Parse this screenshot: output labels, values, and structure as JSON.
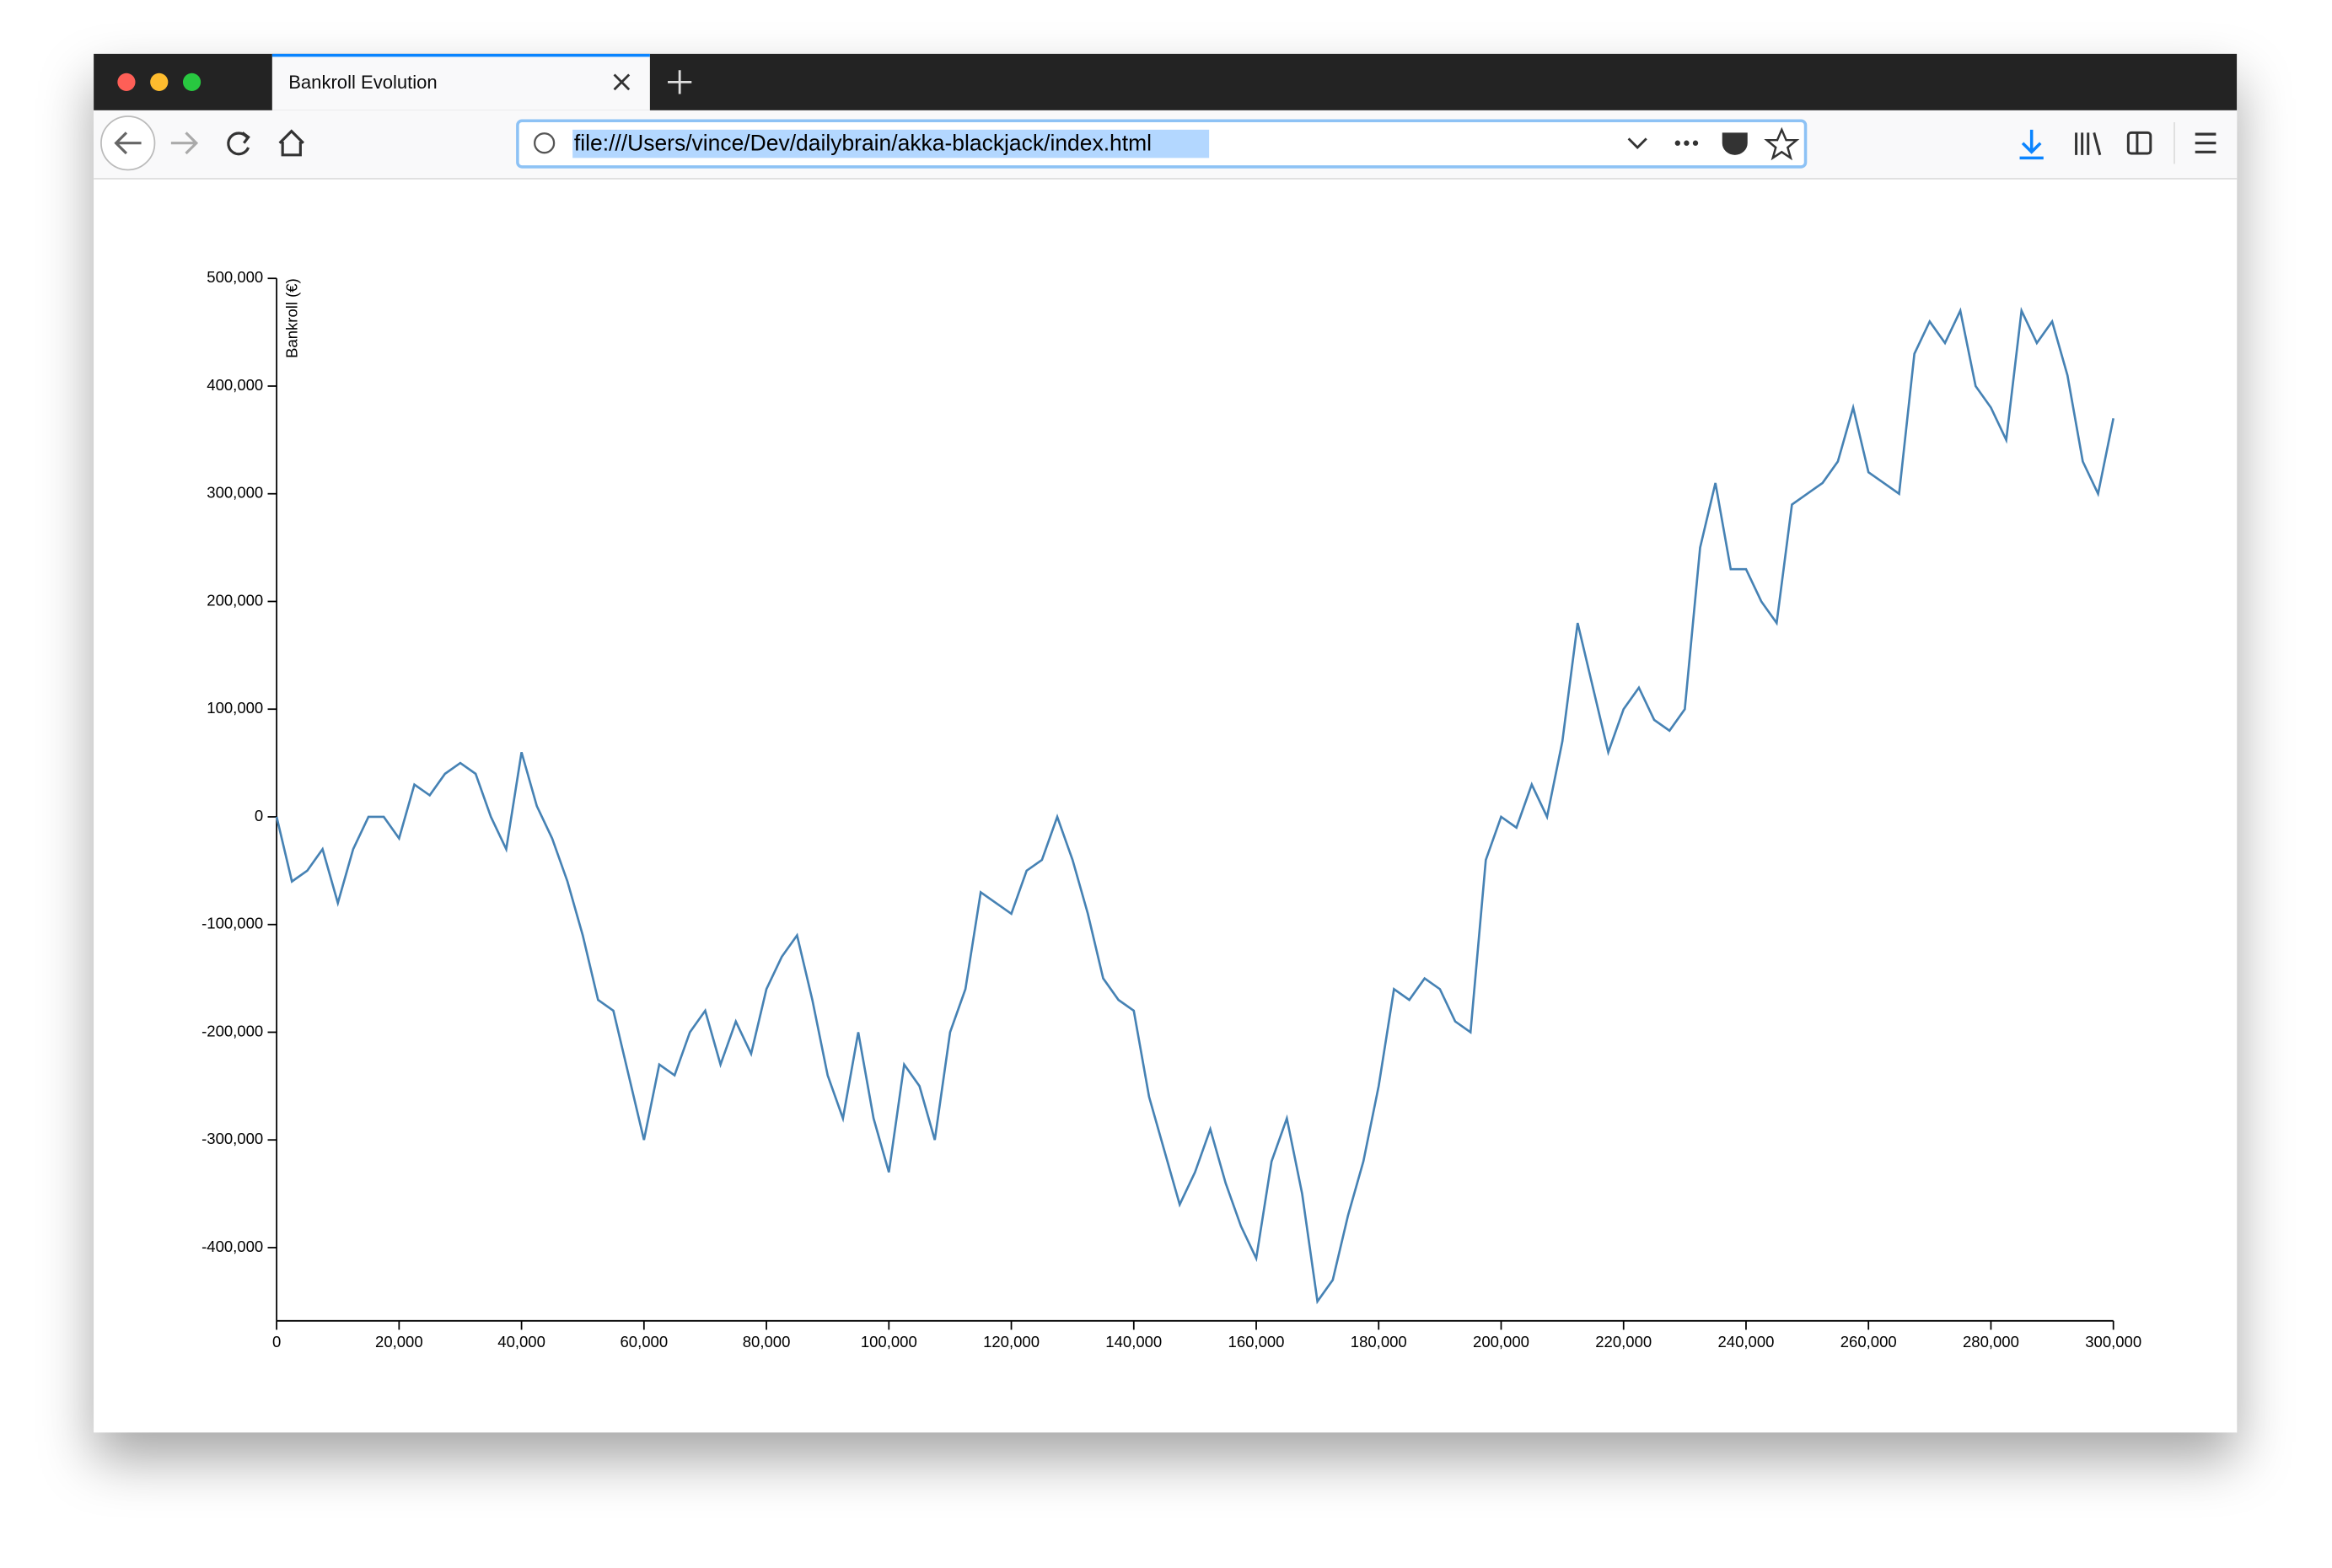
{
  "browser": {
    "tab_title": "Bankroll Evolution",
    "url": "file:///Users/vince/Dev/dailybrain/akka-blackjack/index.html"
  },
  "chart_data": {
    "type": "line",
    "y_label": "Bankroll (€)",
    "color": "#4682b4",
    "x": [
      0,
      2500,
      5000,
      7500,
      10000,
      12500,
      15000,
      17500,
      20000,
      22500,
      25000,
      27500,
      30000,
      32500,
      35000,
      37500,
      40000,
      42500,
      45000,
      47500,
      50000,
      52500,
      55000,
      57500,
      60000,
      62500,
      65000,
      67500,
      70000,
      72500,
      75000,
      77500,
      80000,
      82500,
      85000,
      87500,
      90000,
      92500,
      95000,
      97500,
      100000,
      102500,
      105000,
      107500,
      110000,
      112500,
      115000,
      117500,
      120000,
      122500,
      125000,
      127500,
      130000,
      132500,
      135000,
      137500,
      140000,
      142500,
      145000,
      147500,
      150000,
      152500,
      155000,
      157500,
      160000,
      162500,
      165000,
      167500,
      170000,
      172500,
      175000,
      177500,
      180000,
      182500,
      185000,
      187500,
      190000,
      192500,
      195000,
      197500,
      200000,
      202500,
      205000,
      207500,
      210000,
      212500,
      215000,
      217500,
      220000,
      222500,
      225000,
      227500,
      230000,
      232500,
      235000,
      237500,
      240000,
      242500,
      245000,
      247500,
      250000,
      252500,
      255000,
      257500,
      260000,
      262500,
      265000,
      267500,
      270000,
      272500,
      275000,
      277500,
      280000,
      282500,
      285000,
      287500,
      290000,
      292500,
      295000,
      297500,
      300000
    ],
    "values": [
      0,
      -60000,
      -50000,
      -30000,
      -80000,
      -30000,
      0,
      0,
      -20000,
      30000,
      20000,
      40000,
      50000,
      40000,
      0,
      -30000,
      60000,
      10000,
      -20000,
      -60000,
      -110000,
      -170000,
      -180000,
      -240000,
      -300000,
      -230000,
      -240000,
      -200000,
      -180000,
      -230000,
      -190000,
      -220000,
      -160000,
      -130000,
      -110000,
      -170000,
      -240000,
      -280000,
      -200000,
      -280000,
      -330000,
      -230000,
      -250000,
      -300000,
      -200000,
      -160000,
      -70000,
      -80000,
      -90000,
      -50000,
      -40000,
      0,
      -40000,
      -90000,
      -150000,
      -170000,
      -180000,
      -260000,
      -310000,
      -360000,
      -330000,
      -290000,
      -340000,
      -380000,
      -410000,
      -320000,
      -280000,
      -350000,
      -450000,
      -430000,
      -370000,
      -320000,
      -250000,
      -160000,
      -170000,
      -150000,
      -160000,
      -190000,
      -200000,
      -40000,
      0,
      -10000,
      30000,
      0,
      70000,
      180000,
      120000,
      60000,
      100000,
      120000,
      90000,
      80000,
      100000,
      250000,
      310000,
      230000,
      230000,
      200000,
      180000,
      290000,
      300000,
      310000,
      330000,
      380000,
      320000,
      310000,
      300000,
      430000,
      460000,
      440000,
      470000,
      400000,
      380000,
      350000,
      470000,
      440000,
      460000,
      410000,
      330000,
      300000,
      370000
    ],
    "xlim": [
      0,
      300000
    ],
    "ylim": [
      -468000,
      500000
    ],
    "xticks": [
      0,
      {
        "value": 20000,
        "label": "20,000"
      },
      {
        "value": 40000,
        "label": "40,000"
      },
      {
        "value": 60000,
        "label": "60,000"
      },
      {
        "value": 80000,
        "label": "80,000"
      },
      {
        "value": 100000,
        "label": "100,000"
      },
      {
        "value": 120000,
        "label": "120,000"
      },
      {
        "value": 140000,
        "label": "140,000"
      },
      {
        "value": 160000,
        "label": "160,000"
      },
      {
        "value": 180000,
        "label": "180,000"
      },
      {
        "value": 200000,
        "label": "200,000"
      },
      {
        "value": 220000,
        "label": "220,000"
      },
      {
        "value": 240000,
        "label": "240,000"
      },
      {
        "value": 260000,
        "label": "260,000"
      },
      {
        "value": 280000,
        "label": "280,000"
      },
      {
        "value": 300000,
        "label": "300,000"
      }
    ],
    "yticks": [
      {
        "value": -400000,
        "label": "-400,000"
      },
      {
        "value": -300000,
        "label": "-300,000"
      },
      {
        "value": -200000,
        "label": "-200,000"
      },
      {
        "value": -100000,
        "label": "-100,000"
      },
      0,
      {
        "value": 100000,
        "label": "100,000"
      },
      {
        "value": 200000,
        "label": "200,000"
      },
      {
        "value": 300000,
        "label": "300,000"
      },
      {
        "value": 400000,
        "label": "400,000"
      },
      {
        "value": 500000,
        "label": "500,000"
      }
    ]
  }
}
